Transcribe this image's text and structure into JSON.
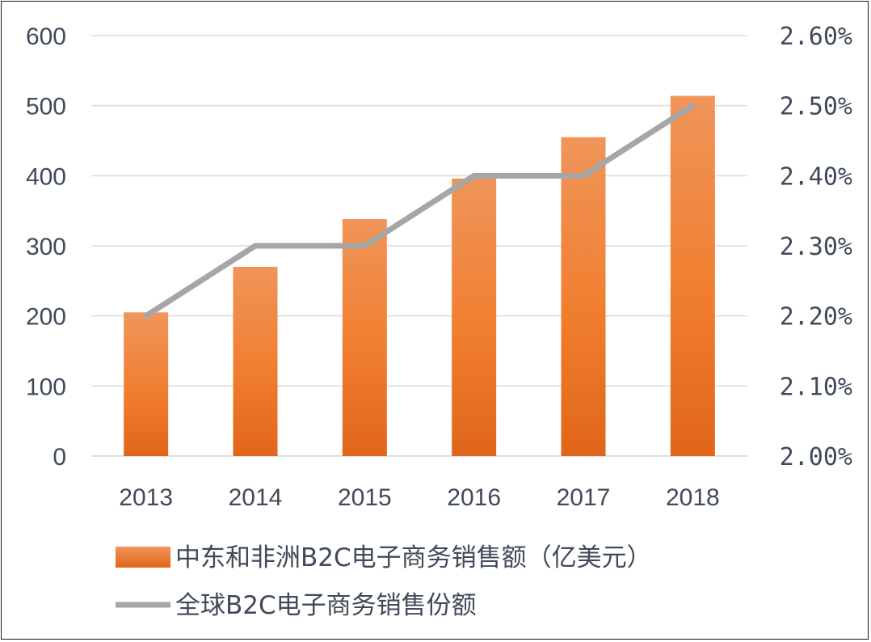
{
  "chart_data": {
    "type": "bar",
    "categories": [
      "2013",
      "2014",
      "2015",
      "2016",
      "2017",
      "2018"
    ],
    "series": [
      {
        "name": "中东和非洲B2C电子商务销售额（亿美元）",
        "type": "bar",
        "axis": "left",
        "values": [
          205,
          270,
          338,
          396,
          455,
          514
        ],
        "color": "#f07c2c"
      },
      {
        "name": "全球B2C电子商务销售份额",
        "type": "line",
        "axis": "right",
        "values": [
          2.2,
          2.3,
          2.3,
          2.4,
          2.4,
          2.5
        ],
        "color": "#a6a6a6"
      }
    ],
    "y_left": {
      "ylim": [
        0,
        600
      ],
      "ticks": [
        "0",
        "100",
        "200",
        "300",
        "400",
        "500",
        "600"
      ]
    },
    "y_right": {
      "ylim": [
        2.0,
        2.6
      ],
      "ticks": [
        "2.00%",
        "2.10%",
        "2.20%",
        "2.30%",
        "2.40%",
        "2.50%",
        "2.60%"
      ]
    },
    "grid": true,
    "legend_position": "bottom"
  }
}
